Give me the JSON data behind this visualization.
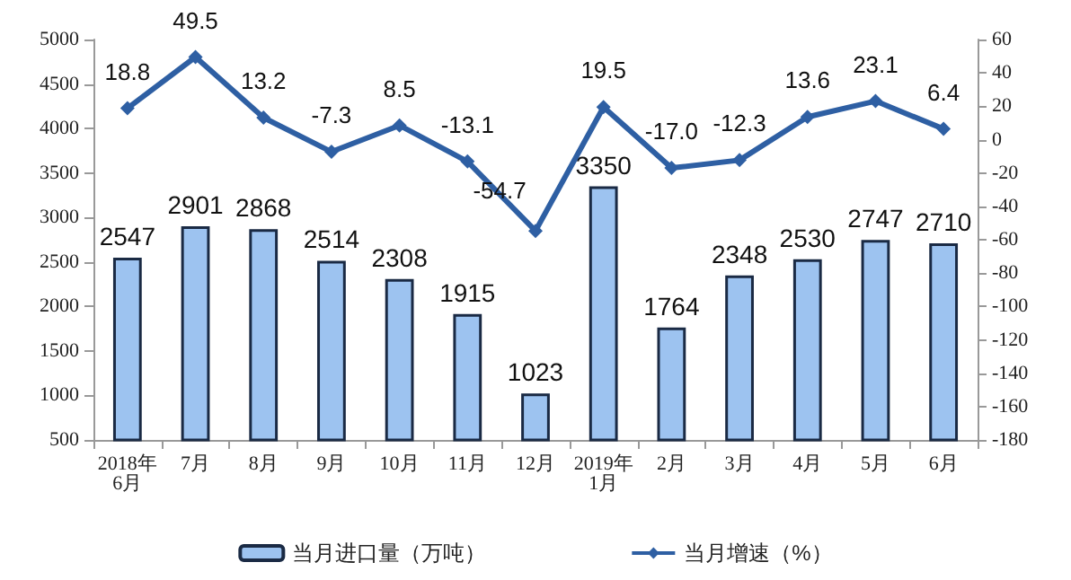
{
  "chart_data": {
    "type": "bar",
    "categories": [
      "2018年\n6月",
      "7月",
      "8月",
      "9月",
      "10月",
      "11月",
      "12月",
      "2019年\n1月",
      "2月",
      "3月",
      "4月",
      "5月",
      "6月"
    ],
    "series": [
      {
        "name": "当月进口量（万吨）",
        "color": "#9dc3f0",
        "values": [
          2547,
          2901,
          2868,
          2514,
          2308,
          1915,
          1023,
          3350,
          1764,
          2348,
          2530,
          2747,
          2710
        ],
        "value_labels": [
          "2547",
          "2901",
          "2868",
          "2514",
          "2308",
          "1915",
          "1023",
          "3350",
          "1764",
          "2348",
          "2530",
          "2747",
          "2710"
        ]
      },
      {
        "name": "当月增速（%）",
        "type": "line",
        "axis": "y2",
        "color": "#2e5fa3",
        "marker": "diamond",
        "values": [
          18.8,
          49.5,
          13.2,
          -7.3,
          8.5,
          -13.1,
          -54.7,
          19.5,
          -17.0,
          -12.3,
          13.6,
          23.1,
          6.4
        ],
        "value_labels": [
          "18.8",
          "49.5",
          "13.2",
          "-7.3",
          "8.5",
          "-13.1",
          "-54.7",
          "19.5",
          "-17.0",
          "-12.3",
          "13.6",
          "23.1",
          "6.4"
        ]
      }
    ],
    "ylim": [
      500,
      5000
    ],
    "yticks": [
      500,
      1000,
      1500,
      2000,
      2500,
      3000,
      3500,
      4000,
      4500,
      5000
    ],
    "y2lim": [
      -180,
      60
    ],
    "y2ticks": [
      -180,
      -160,
      -140,
      -120,
      -100,
      -80,
      -60,
      -40,
      -20,
      0,
      20,
      40,
      60
    ],
    "grid": false,
    "legend": "bottom"
  }
}
